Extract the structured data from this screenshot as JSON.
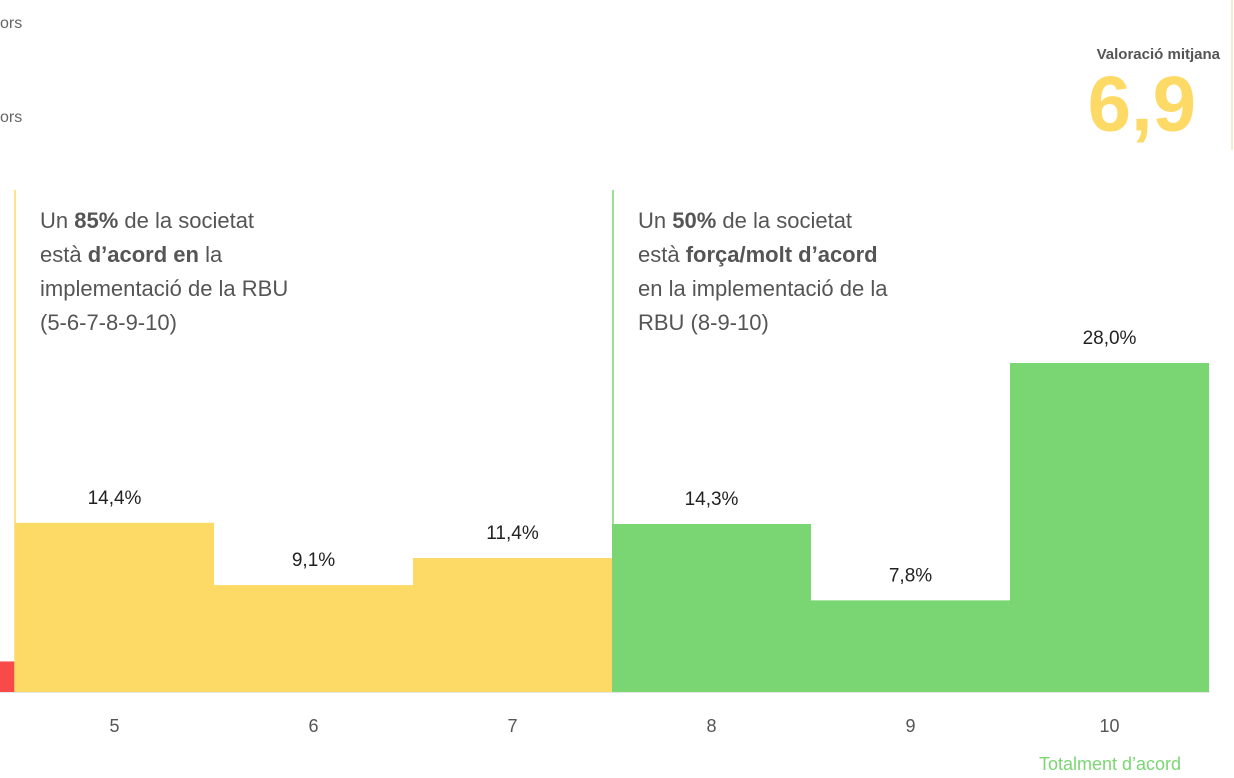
{
  "chart_data": {
    "type": "bar",
    "categories": [
      null,
      "5",
      "6",
      "7",
      "8",
      "9",
      "10"
    ],
    "values": [
      2.6,
      14.4,
      9.1,
      11.4,
      14.3,
      7.8,
      28.0
    ],
    "value_labels": [
      null,
      "14,4%",
      "9,1%",
      "11,4%",
      "14,3%",
      "7,8%",
      "28,0%"
    ],
    "colors": [
      "#f94a4a",
      "#fdd966",
      "#fdd966",
      "#fdd966",
      "#7ad672",
      "#7ad672",
      "#7ad672"
    ],
    "cut_texts": [
      "ors",
      "ors"
    ],
    "average_label": "Valoració mitjana",
    "average_value": "6,9",
    "end_label": "Totalment d’acord",
    "annotations": [
      {
        "color": "#fdd966",
        "lines": [
          [
            {
              "text": "Un "
            },
            {
              "text": "85%",
              "bold": true
            },
            {
              "text": " de la societat"
            }
          ],
          [
            {
              "text": "està "
            },
            {
              "text": "d’acord en",
              "bold": true
            },
            {
              "text": " la"
            }
          ],
          [
            {
              "text": "implementació de la RBU"
            }
          ],
          [
            {
              "text": "(5-6-7-8-9-10)"
            }
          ]
        ]
      },
      {
        "color": "#7ad672",
        "lines": [
          [
            {
              "text": "Un "
            },
            {
              "text": "50%",
              "bold": true
            },
            {
              "text": " de la societat"
            }
          ],
          [
            {
              "text": "està "
            },
            {
              "text": "força/molt d’acord",
              "bold": true
            }
          ],
          [
            {
              "text": "en la implementació de la"
            }
          ],
          [
            {
              "text": "RBU (8-9-10)"
            }
          ]
        ]
      }
    ]
  }
}
